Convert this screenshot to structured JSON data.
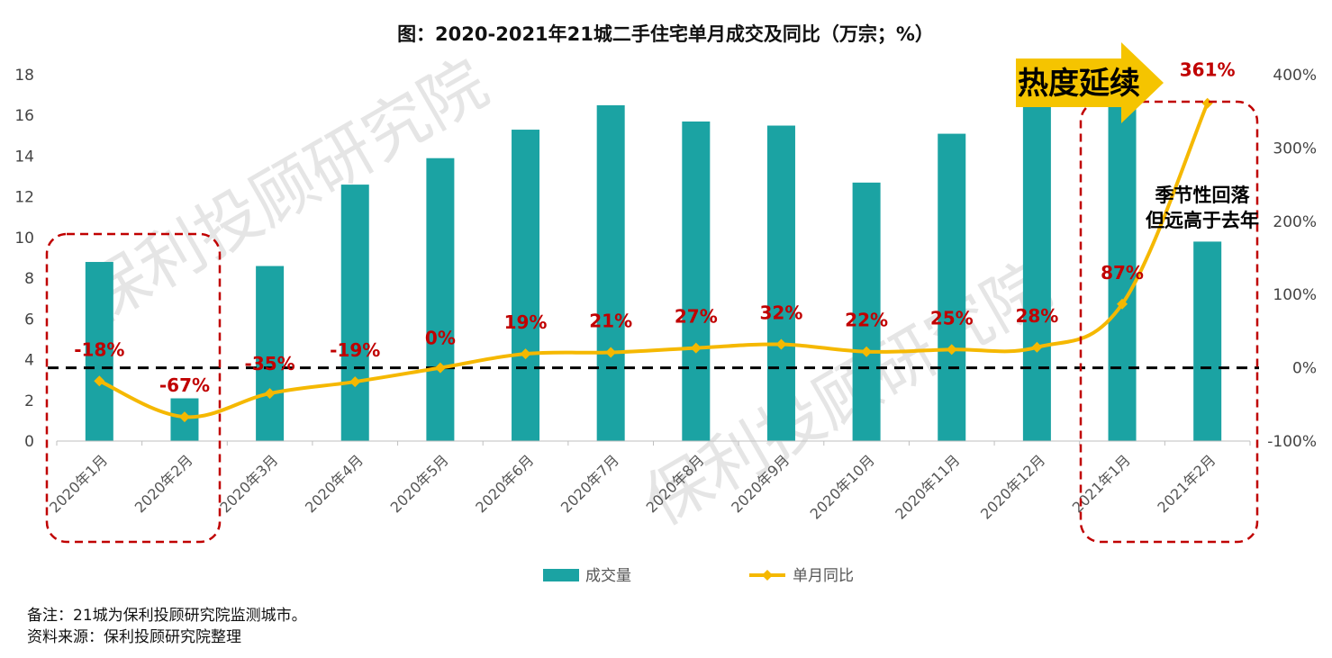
{
  "title": "图：2020-2021年21城二手住宅单月成交及同比（万宗；%）",
  "notes": {
    "line1": "备注：21城为保利投顾研究院监测城市。",
    "line2": "资料来源：保利投顾研究院整理"
  },
  "watermark": "保利投顾研究院",
  "annotations": {
    "heat": "热度延续",
    "seasonal_line1": "季节性回落",
    "seasonal_line2": "但远高于去年"
  },
  "colors": {
    "bar": "#1ba3a3",
    "line": "#f5b800",
    "label_red": "#c00000",
    "dashed_box": "#c00000",
    "arrow": "#f5c400",
    "zero_line": "#000000"
  },
  "chart_data": {
    "type": "bar+line",
    "categories": [
      "2020年1月",
      "2020年2月",
      "2020年3月",
      "2020年4月",
      "2020年5月",
      "2020年6月",
      "2020年7月",
      "2020年8月",
      "2020年9月",
      "2020年10月",
      "2020年11月",
      "2020年12月",
      "2021年1月",
      "2021年2月"
    ],
    "series": [
      {
        "name": "成交量",
        "type": "bar",
        "axis": "left",
        "values": [
          8.8,
          2.1,
          8.6,
          12.6,
          13.9,
          15.3,
          16.5,
          15.7,
          15.5,
          12.7,
          15.1,
          16.7,
          16.5,
          9.8
        ]
      },
      {
        "name": "单月同比",
        "type": "line",
        "axis": "right",
        "values": [
          -18,
          -67,
          -35,
          -19,
          0,
          19,
          21,
          27,
          32,
          22,
          25,
          28,
          87,
          361
        ],
        "labels": [
          "-18%",
          "-67%",
          "-35%",
          "-19%",
          "0%",
          "19%",
          "21%",
          "27%",
          "32%",
          "22%",
          "25%",
          "28%",
          "87%",
          "361%"
        ]
      }
    ],
    "y_left": {
      "min": 0,
      "max": 18,
      "ticks": [
        "0",
        "2",
        "4",
        "6",
        "8",
        "10",
        "12",
        "14",
        "16",
        "18"
      ]
    },
    "y_right": {
      "min": -100,
      "max": 400,
      "ticks": [
        "-100%",
        "0%",
        "100%",
        "200%",
        "300%",
        "400%"
      ]
    },
    "legend_position": "bottom",
    "grid": false
  }
}
